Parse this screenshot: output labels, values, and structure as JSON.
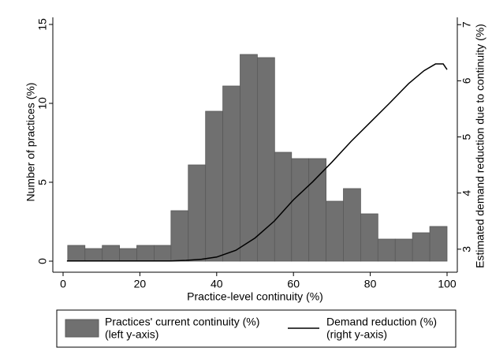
{
  "chart_data": {
    "type": "histogram",
    "name": [
      "Practices' current continuity (%)",
      "(left y-axis)"
    ],
    "color": "#707070",
    "bins": [
      1.2,
      5.7,
      10.2,
      14.7,
      19.2,
      23.7,
      28.1,
      32.6,
      37.1,
      41.6,
      46.1,
      50.6,
      55.1,
      59.5,
      64.0,
      68.5,
      73.0,
      77.5,
      82.0,
      86.5,
      91.0,
      95.5,
      100
    ],
    "values": [
      1.0,
      0.8,
      1.0,
      0.8,
      1.0,
      1.0,
      3.2,
      6.1,
      9.5,
      11.1,
      13.1,
      12.9,
      6.9,
      6.5,
      6.5,
      3.8,
      4.6,
      3.0,
      1.4,
      1.4,
      1.8,
      2.2
    ],
    "series": [
      {
        "type": "line",
        "name": [
          "Demand reduction (%)",
          "(right y-axis)"
        ],
        "axis": "y2",
        "color": "#000000",
        "x": [
          1,
          28,
          32,
          36,
          40,
          45,
          50,
          55,
          60,
          65,
          70,
          75,
          80,
          85,
          90,
          94,
          97,
          99,
          100
        ],
        "values": [
          2.79,
          2.79,
          2.8,
          2.82,
          2.86,
          2.98,
          3.2,
          3.5,
          3.88,
          4.2,
          4.55,
          4.92,
          5.26,
          5.6,
          5.95,
          6.18,
          6.3,
          6.3,
          6.2
        ]
      }
    ],
    "x_label": "Practice-level continuity (%)",
    "y_label": "Number of practices (%)",
    "y2_label": "Estimated demand reduction due to continuity (%)",
    "xlim": [
      -2.67,
      102.67
    ],
    "xticks": [
      0,
      20,
      40,
      60,
      80,
      100
    ],
    "ylim": [
      -0.7,
      15.45
    ],
    "yticks": [
      0,
      5,
      10,
      15
    ],
    "y2lim": [
      2.59,
      7.13
    ],
    "y2ticks": [
      3,
      4,
      5,
      6,
      7
    ],
    "legend": "bottom"
  }
}
